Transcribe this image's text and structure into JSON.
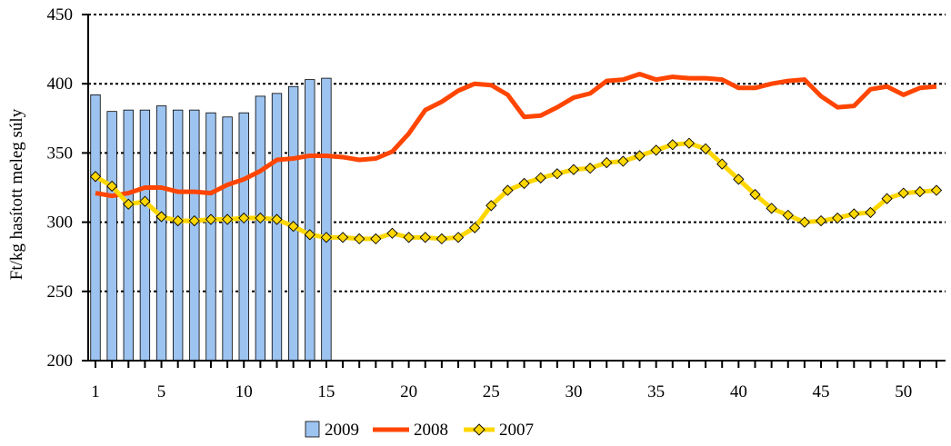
{
  "chart_data": {
    "type": "bar+line",
    "ylabel": "Ft/kg hasított meleg súly",
    "ylim": [
      200,
      450
    ],
    "yticks": [
      200,
      250,
      300,
      350,
      400,
      450
    ],
    "xlim": [
      1,
      52
    ],
    "xtick_labels": [
      "1",
      "5",
      "10",
      "15",
      "20",
      "25",
      "30",
      "35",
      "40",
      "45",
      "50"
    ],
    "grid": "horizontal dotted",
    "legend_position": "bottom",
    "series": [
      {
        "name": "2009",
        "kind": "bar",
        "color": "#9DC3F0",
        "x": [
          1,
          2,
          3,
          4,
          5,
          6,
          7,
          8,
          9,
          10,
          11,
          12,
          13,
          14,
          15
        ],
        "values": [
          392,
          380,
          381,
          381,
          384,
          381,
          381,
          379,
          376,
          379,
          391,
          393,
          398,
          403,
          404
        ]
      },
      {
        "name": "2008",
        "kind": "line",
        "color": "#FF4500",
        "x": [
          1,
          2,
          3,
          4,
          5,
          6,
          7,
          8,
          9,
          10,
          11,
          12,
          13,
          14,
          15,
          16,
          17,
          18,
          19,
          20,
          21,
          22,
          23,
          24,
          25,
          26,
          27,
          28,
          29,
          30,
          31,
          32,
          33,
          34,
          35,
          36,
          37,
          38,
          39,
          40,
          41,
          42,
          43,
          44,
          45,
          46,
          47,
          48,
          49,
          50,
          51,
          52
        ],
        "values": [
          321,
          319,
          321,
          325,
          325,
          322,
          322,
          321,
          327,
          331,
          337,
          345,
          346,
          348,
          348,
          347,
          345,
          346,
          351,
          364,
          381,
          387,
          395,
          400,
          399,
          392,
          376,
          377,
          383,
          390,
          393,
          402,
          403,
          407,
          403,
          405,
          404,
          404,
          403,
          397,
          397,
          400,
          402,
          403,
          391,
          383,
          384,
          396,
          398,
          392,
          397,
          398
        ]
      },
      {
        "name": "2007",
        "kind": "line-marker",
        "color": "#FFD700",
        "marker_color": "#FFD700",
        "x": [
          1,
          2,
          3,
          4,
          5,
          6,
          7,
          8,
          9,
          10,
          11,
          12,
          13,
          14,
          15,
          16,
          17,
          18,
          19,
          20,
          21,
          22,
          23,
          24,
          25,
          26,
          27,
          28,
          29,
          30,
          31,
          32,
          33,
          34,
          35,
          36,
          37,
          38,
          39,
          40,
          41,
          42,
          43,
          44,
          45,
          46,
          47,
          48,
          49,
          50,
          51,
          52
        ],
        "values": [
          333,
          326,
          313,
          315,
          304,
          301,
          301,
          302,
          302,
          303,
          303,
          302,
          297,
          291,
          289,
          289,
          288,
          288,
          292,
          289,
          289,
          288,
          289,
          296,
          312,
          323,
          328,
          332,
          335,
          338,
          339,
          343,
          344,
          348,
          352,
          356,
          357,
          353,
          342,
          331,
          320,
          310,
          305,
          300,
          301,
          303,
          306,
          307,
          317,
          321,
          322,
          323
        ]
      }
    ]
  }
}
